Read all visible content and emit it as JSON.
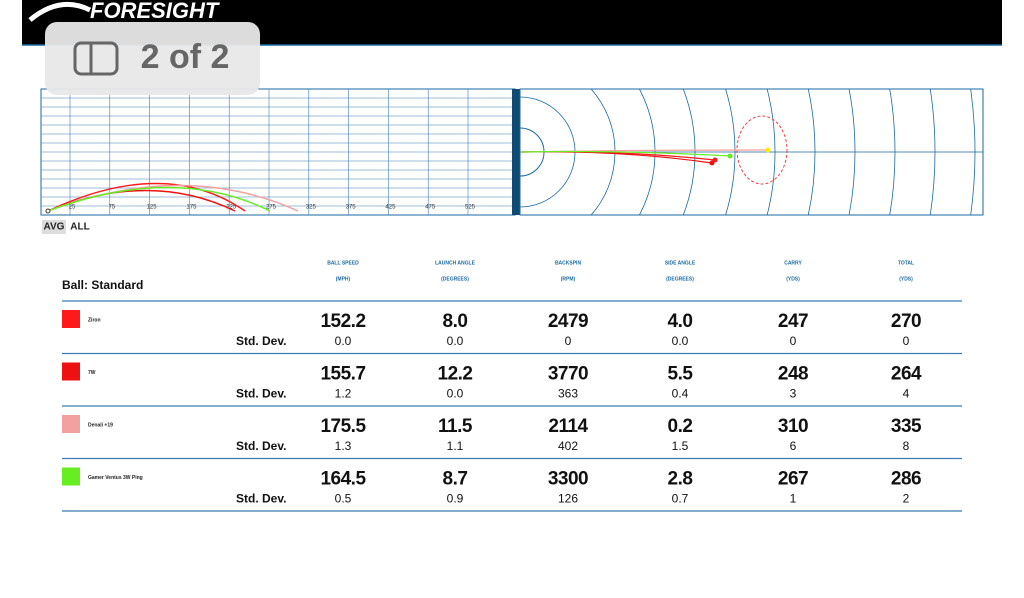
{
  "header": {
    "logo": "FORESIGHT"
  },
  "viewer": {
    "page_indicator": "2 of 2"
  },
  "plot": {
    "distance_labels": [
      25,
      75,
      125,
      175,
      225,
      275,
      325,
      375,
      425,
      475,
      525
    ]
  },
  "tabs": [
    "AVG",
    "ALL"
  ],
  "table": {
    "ball_label": "Ball: Standard",
    "std_dev_label": "Std. Dev.",
    "columns": [
      {
        "name": "BALL SPEED",
        "unit": "(MPH)"
      },
      {
        "name": "LAUNCH ANGLE",
        "unit": "(DEGREES)"
      },
      {
        "name": "BACKSPIN",
        "unit": "(RPM)"
      },
      {
        "name": "SIDE ANGLE",
        "unit": "(DEGREES)"
      },
      {
        "name": "CARRY",
        "unit": "(YDS)"
      },
      {
        "name": "TOTAL",
        "unit": "(YDS)"
      }
    ],
    "rows": [
      {
        "club": "Ziron",
        "color": "#ff1a1a",
        "values": [
          "152.2",
          "8.0",
          "2479",
          "4.0",
          "247",
          "270"
        ],
        "std_dev": [
          "0.0",
          "0.0",
          "0",
          "0.0",
          "0",
          "0"
        ]
      },
      {
        "club": "7W",
        "color": "#ee1111",
        "values": [
          "155.7",
          "12.2",
          "3770",
          "5.5",
          "248",
          "264"
        ],
        "std_dev": [
          "1.2",
          "0.0",
          "363",
          "0.4",
          "3",
          "4"
        ]
      },
      {
        "club": "Denali +19",
        "color": "#f2a0a0",
        "values": [
          "175.5",
          "11.5",
          "2114",
          "0.2",
          "310",
          "335"
        ],
        "std_dev": [
          "1.3",
          "1.1",
          "402",
          "1.5",
          "6",
          "8"
        ]
      },
      {
        "club": "Gamer Ventus 3W Ping",
        "color": "#66ee22",
        "values": [
          "164.5",
          "8.7",
          "3300",
          "2.8",
          "267",
          "286"
        ],
        "std_dev": [
          "0.5",
          "0.9",
          "126",
          "0.7",
          "1",
          "2"
        ]
      }
    ]
  }
}
